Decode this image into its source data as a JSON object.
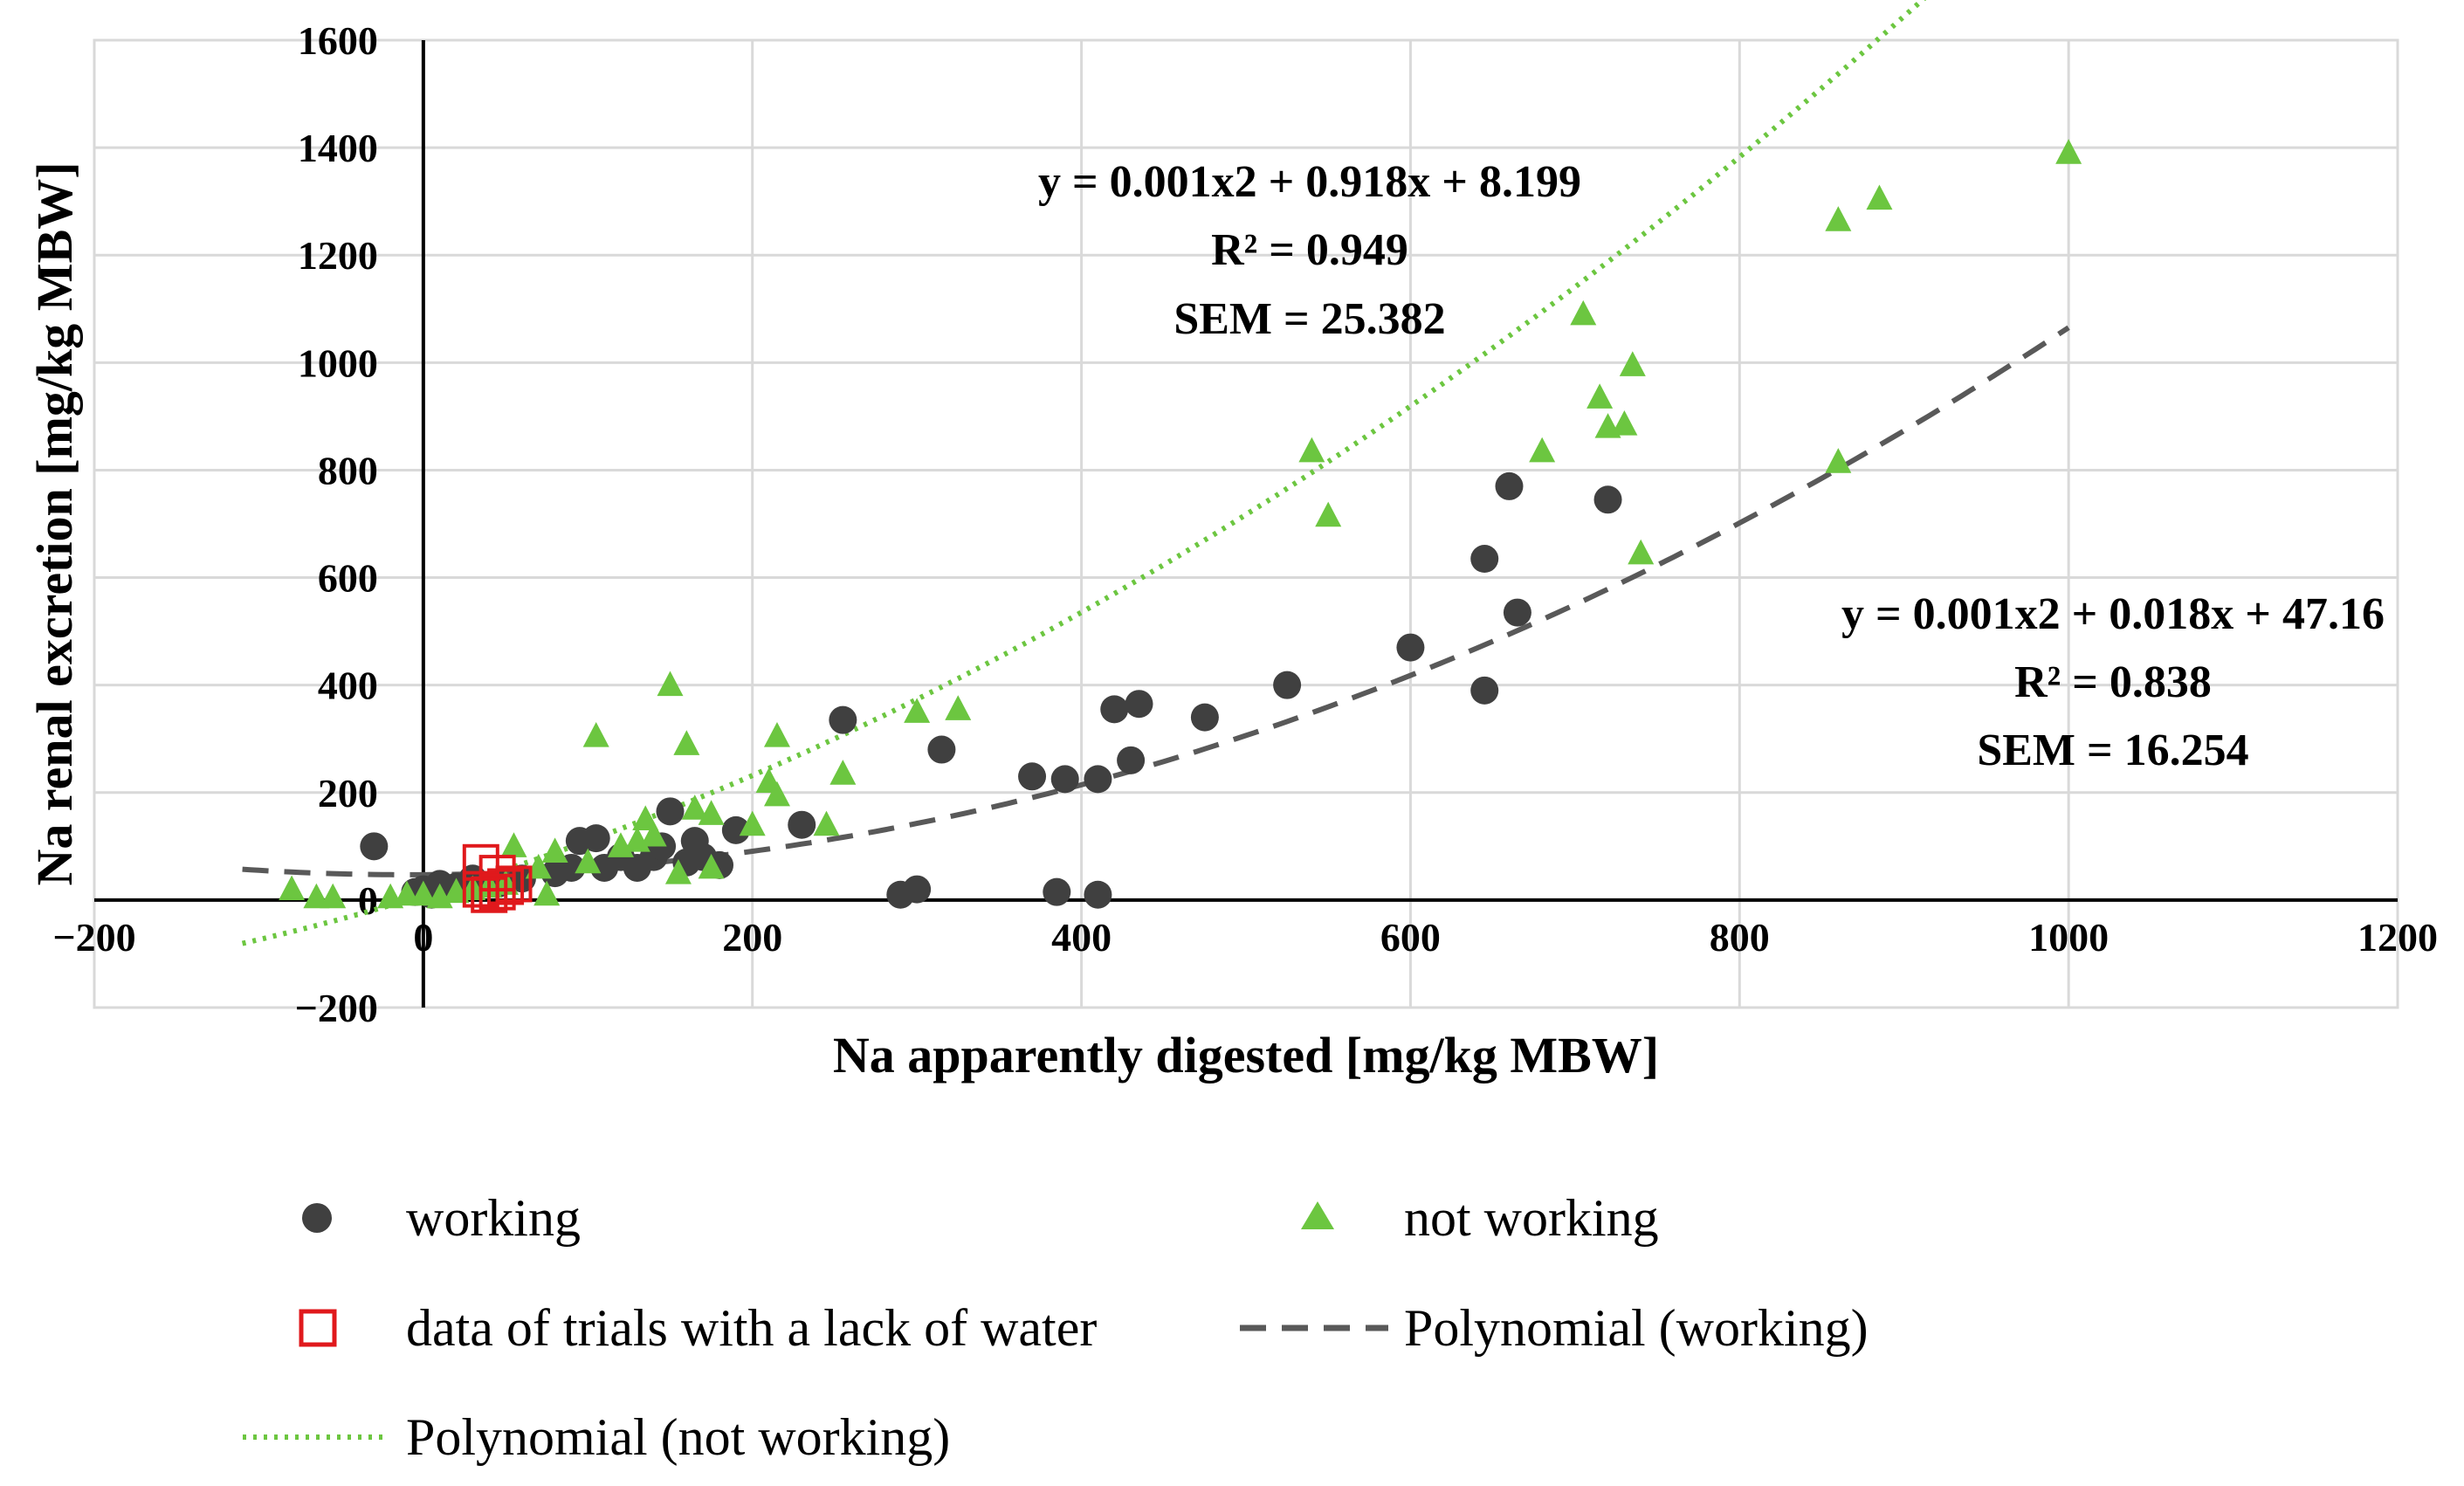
{
  "chart_data": {
    "type": "scatter",
    "xlabel": "Na apparently digested [mg/kg MBW]",
    "ylabel": "Na renal excretion [mg/kg MBW]",
    "xlim": [
      -200,
      1200
    ],
    "ylim": [
      -200,
      1600
    ],
    "xticks": [
      -200,
      0,
      200,
      400,
      600,
      800,
      1000,
      1200
    ],
    "yticks": [
      -200,
      0,
      200,
      400,
      600,
      800,
      1000,
      1200,
      1400,
      1600
    ],
    "xtick_labels": [
      "−200",
      "0",
      "200",
      "400",
      "600",
      "800",
      "1000",
      "1200"
    ],
    "ytick_labels": [
      "−200",
      "0",
      "200",
      "400",
      "600",
      "800",
      "1000",
      "1200",
      "1400",
      "1600"
    ],
    "grid": true,
    "colors": {
      "working": "#404040",
      "not_working": "#6cc640",
      "water": "#e0191c",
      "working_trend": "#595959",
      "not_working_trend": "#6cc640"
    },
    "series": [
      {
        "name": "working",
        "marker": "circle",
        "points": [
          [
            -30,
            100
          ],
          [
            -5,
            15
          ],
          [
            0,
            20
          ],
          [
            5,
            10
          ],
          [
            10,
            30
          ],
          [
            20,
            25
          ],
          [
            30,
            40
          ],
          [
            45,
            30
          ],
          [
            60,
            40
          ],
          [
            80,
            50
          ],
          [
            90,
            60
          ],
          [
            95,
            110
          ],
          [
            105,
            115
          ],
          [
            110,
            60
          ],
          [
            120,
            80
          ],
          [
            130,
            60
          ],
          [
            140,
            80
          ],
          [
            145,
            100
          ],
          [
            150,
            165
          ],
          [
            160,
            70
          ],
          [
            165,
            110
          ],
          [
            170,
            80
          ],
          [
            180,
            65
          ],
          [
            190,
            130
          ],
          [
            230,
            140
          ],
          [
            255,
            335
          ],
          [
            290,
            10
          ],
          [
            300,
            20
          ],
          [
            315,
            280
          ],
          [
            370,
            230
          ],
          [
            385,
            15
          ],
          [
            390,
            225
          ],
          [
            410,
            10
          ],
          [
            410,
            225
          ],
          [
            420,
            355
          ],
          [
            430,
            260
          ],
          [
            435,
            365
          ],
          [
            475,
            340
          ],
          [
            525,
            400
          ],
          [
            600,
            470
          ],
          [
            645,
            635
          ],
          [
            645,
            390
          ],
          [
            660,
            770
          ],
          [
            665,
            535
          ],
          [
            720,
            745
          ]
        ]
      },
      {
        "name": "not working",
        "marker": "triangle",
        "points": [
          [
            -80,
            20
          ],
          [
            -65,
            5
          ],
          [
            -55,
            5
          ],
          [
            -20,
            5
          ],
          [
            -10,
            10
          ],
          [
            0,
            10
          ],
          [
            10,
            5
          ],
          [
            20,
            15
          ],
          [
            30,
            20
          ],
          [
            40,
            25
          ],
          [
            50,
            30
          ],
          [
            55,
            100
          ],
          [
            70,
            60
          ],
          [
            75,
            10
          ],
          [
            80,
            90
          ],
          [
            100,
            70
          ],
          [
            105,
            305
          ],
          [
            120,
            100
          ],
          [
            130,
            110
          ],
          [
            135,
            150
          ],
          [
            140,
            120
          ],
          [
            150,
            400
          ],
          [
            155,
            50
          ],
          [
            160,
            290
          ],
          [
            165,
            170
          ],
          [
            175,
            160
          ],
          [
            175,
            60
          ],
          [
            200,
            140
          ],
          [
            210,
            220
          ],
          [
            215,
            195
          ],
          [
            215,
            305
          ],
          [
            245,
            140
          ],
          [
            255,
            235
          ],
          [
            300,
            350
          ],
          [
            325,
            355
          ],
          [
            540,
            835
          ],
          [
            550,
            715
          ],
          [
            680,
            835
          ],
          [
            705,
            1090
          ],
          [
            715,
            935
          ],
          [
            720,
            880
          ],
          [
            730,
            885
          ],
          [
            735,
            995
          ],
          [
            740,
            645
          ],
          [
            860,
            1265
          ],
          [
            860,
            815
          ],
          [
            885,
            1305
          ],
          [
            1000,
            1390
          ]
        ]
      },
      {
        "name": "data of trials with a lack of water",
        "marker": "square",
        "points": [
          [
            35,
            70
          ],
          [
            45,
            50
          ],
          [
            50,
            25
          ],
          [
            35,
            20
          ],
          [
            40,
            10
          ],
          [
            55,
            30
          ],
          [
            45,
            15
          ]
        ]
      }
    ],
    "trendlines": [
      {
        "name": "Polynomial (working)",
        "style": "dashed",
        "coefficients": [
          0.001,
          0.018,
          47.16
        ],
        "x_range": [
          -110,
          1000
        ]
      },
      {
        "name": "Polynomial (not working)",
        "style": "dotted",
        "coefficients": [
          0.001,
          0.918,
          8.199
        ],
        "x_range": [
          -110,
          1000
        ]
      }
    ],
    "annotations": [
      {
        "id": "not_working_eq",
        "lines": [
          "y = 0.001x2 + 0.918x + 8.199",
          "R² = 0.949",
          "SEM = 25.382"
        ]
      },
      {
        "id": "working_eq",
        "lines": [
          "y = 0.001x2 + 0.018x + 47.16",
          "R² = 0.838",
          "SEM = 16.254"
        ]
      }
    ],
    "legend": {
      "placement": "bottom",
      "entries": [
        "working",
        "not working",
        "data of trials with a lack of water",
        "Polynomial (working)",
        "Polynomial (not working)"
      ]
    }
  }
}
